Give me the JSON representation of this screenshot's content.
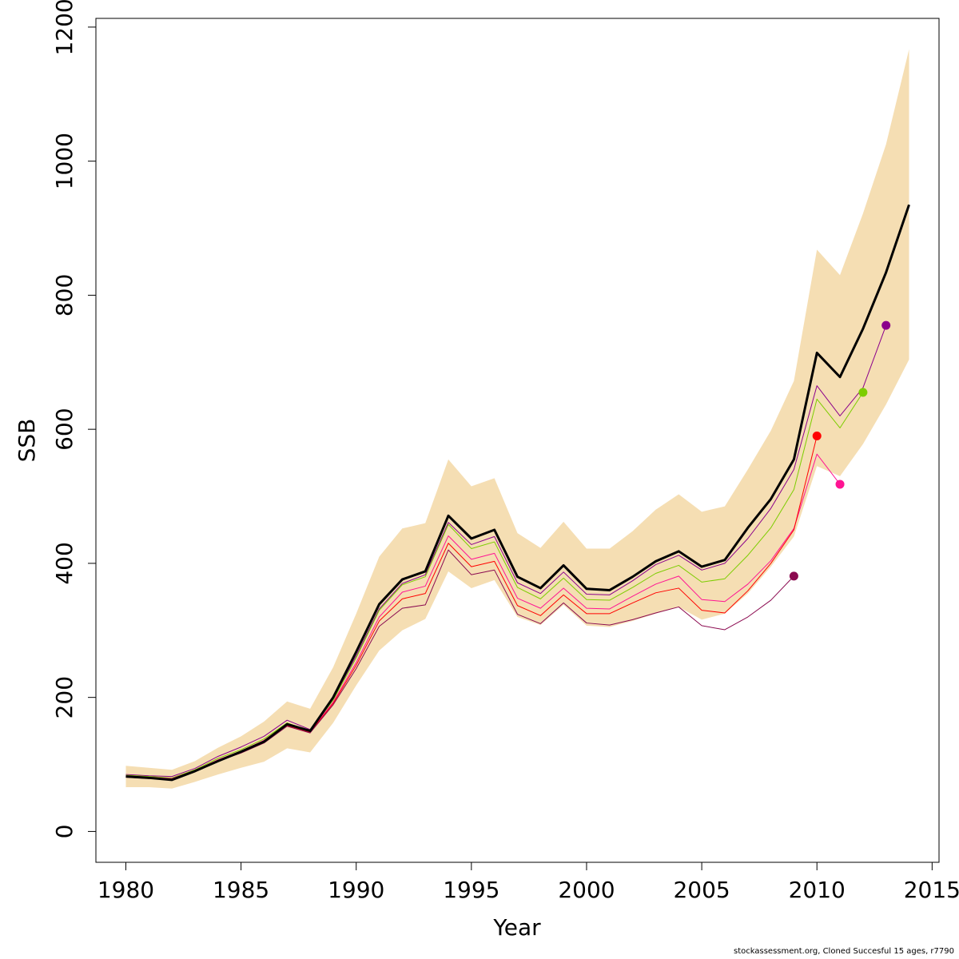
{
  "chart_data": {
    "type": "line",
    "xlabel": "Year",
    "ylabel": "SSB",
    "xlim": [
      1978.7,
      2015.3
    ],
    "ylim": [
      -46,
      1213
    ],
    "x_ticks": [
      1980,
      1985,
      1990,
      1995,
      2000,
      2005,
      2010,
      2015
    ],
    "y_ticks": [
      0,
      200,
      400,
      600,
      800,
      1000,
      1200
    ],
    "grid": false,
    "legend": "none",
    "band": {
      "color": "#F5DEB3",
      "x": [
        1980,
        1981,
        1982,
        1983,
        1984,
        1985,
        1986,
        1987,
        1988,
        1989,
        1990,
        1991,
        1992,
        1993,
        1994,
        1995,
        1996,
        1997,
        1998,
        1999,
        2000,
        2001,
        2002,
        2003,
        2004,
        2005,
        2006,
        2007,
        2008,
        2009,
        2010,
        2011,
        2012,
        2013,
        2014
      ],
      "upper": [
        98,
        95,
        92,
        105,
        125,
        142,
        164,
        194,
        183,
        245,
        325,
        410,
        452,
        460,
        555,
        515,
        527,
        445,
        423,
        462,
        422,
        422,
        448,
        480,
        503,
        477,
        485,
        540,
        598,
        672,
        868,
        830,
        922,
        1025,
        1167
      ],
      "lower": [
        66,
        66,
        64,
        74,
        85,
        95,
        104,
        124,
        118,
        162,
        218,
        270,
        300,
        317,
        388,
        363,
        375,
        320,
        308,
        338,
        307,
        305,
        314,
        325,
        335,
        316,
        325,
        355,
        395,
        440,
        545,
        530,
        578,
        637,
        704
      ]
    },
    "series": [
      {
        "color": "#000000",
        "x": [
          1980,
          1981,
          1982,
          1983,
          1984,
          1985,
          1986,
          1987,
          1988,
          1989,
          1990,
          1991,
          1992,
          1993,
          1994,
          1995,
          1996,
          1997,
          1998,
          1999,
          2000,
          2001,
          2002,
          2003,
          2004,
          2005,
          2006,
          2007,
          2008,
          2009,
          2010,
          2011,
          2012,
          2013,
          2014
        ],
        "values": [
          82,
          80,
          77,
          90,
          105,
          119,
          134,
          160,
          150,
          200,
          268,
          339,
          376,
          388,
          471,
          437,
          450,
          380,
          363,
          397,
          362,
          360,
          380,
          403,
          418,
          395,
          405,
          453,
          496,
          555,
          714,
          678,
          750,
          834,
          935
        ]
      },
      {
        "color": "#8B008B",
        "x": [
          1980,
          1981,
          1982,
          1983,
          1984,
          1985,
          1986,
          1987,
          1988,
          1989,
          1990,
          1991,
          1992,
          1993,
          1994,
          1995,
          1996,
          1997,
          1998,
          1999,
          2000,
          2001,
          2002,
          2003,
          2004,
          2005,
          2006,
          2007,
          2008,
          2009,
          2010,
          2011,
          2012,
          2013
        ],
        "values": [
          85,
          83,
          82,
          94,
          112,
          126,
          142,
          166,
          152,
          198,
          262,
          332,
          370,
          383,
          461,
          428,
          440,
          371,
          355,
          387,
          354,
          353,
          374,
          398,
          412,
          390,
          400,
          437,
          482,
          540,
          665,
          620,
          662,
          755
        ]
      },
      {
        "color": "#7CCD00",
        "x": [
          1980,
          1981,
          1982,
          1983,
          1984,
          1985,
          1986,
          1987,
          1988,
          1989,
          1990,
          1991,
          1992,
          1993,
          1994,
          1995,
          1996,
          1997,
          1998,
          1999,
          2000,
          2001,
          2002,
          2003,
          2004,
          2005,
          2006,
          2007,
          2008,
          2009,
          2010,
          2011,
          2012
        ],
        "values": [
          84,
          82,
          80,
          92,
          109,
          122,
          138,
          162,
          150,
          196,
          259,
          330,
          368,
          380,
          458,
          422,
          432,
          364,
          347,
          378,
          346,
          345,
          364,
          385,
          397,
          372,
          377,
          412,
          453,
          510,
          645,
          602,
          655
        ]
      },
      {
        "color": "#FF1493",
        "x": [
          1980,
          1981,
          1982,
          1983,
          1984,
          1985,
          1986,
          1987,
          1988,
          1989,
          1990,
          1991,
          1992,
          1993,
          1994,
          1995,
          1996,
          1997,
          1998,
          1999,
          2000,
          2001,
          2002,
          2003,
          2004,
          2005,
          2006,
          2007,
          2008,
          2009,
          2010,
          2011
        ],
        "values": [
          83,
          81,
          79,
          91,
          107,
          120,
          136,
          160,
          149,
          193,
          252,
          320,
          357,
          366,
          441,
          406,
          415,
          348,
          333,
          363,
          333,
          332,
          351,
          369,
          381,
          346,
          343,
          369,
          404,
          452,
          563,
          518
        ]
      },
      {
        "color": "#FF0000",
        "x": [
          1980,
          1981,
          1982,
          1983,
          1984,
          1985,
          1986,
          1987,
          1988,
          1989,
          1990,
          1991,
          1992,
          1993,
          1994,
          1995,
          1996,
          1997,
          1998,
          1999,
          2000,
          2001,
          2002,
          2003,
          2004,
          2005,
          2006,
          2007,
          2008,
          2009,
          2010
        ],
        "values": [
          82,
          80,
          78,
          90,
          106,
          118,
          134,
          158,
          148,
          191,
          248,
          314,
          347,
          355,
          430,
          395,
          403,
          337,
          322,
          353,
          325,
          325,
          341,
          356,
          363,
          330,
          326,
          359,
          400,
          450,
          590
        ]
      },
      {
        "color": "#8B0A50",
        "x": [
          1980,
          1981,
          1982,
          1983,
          1984,
          1985,
          1986,
          1987,
          1988,
          1989,
          1990,
          1991,
          1992,
          1993,
          1994,
          1995,
          1996,
          1997,
          1998,
          1999,
          2000,
          2001,
          2002,
          2003,
          2004,
          2005,
          2006,
          2007,
          2008,
          2009
        ],
        "values": [
          81,
          79,
          77,
          89,
          105,
          117,
          132,
          157,
          147,
          189,
          243,
          306,
          333,
          338,
          420,
          383,
          390,
          324,
          310,
          341,
          311,
          308,
          316,
          326,
          335,
          307,
          301,
          320,
          345,
          381
        ]
      },
      {
        "color": "#8B008B",
        "x": [
          2013
        ],
        "values": [
          755
        ],
        "endpoint_only": true
      },
      {
        "color": "#7CCD00",
        "x": [
          2012
        ],
        "values": [
          655
        ],
        "endpoint_only": true
      },
      {
        "color": "#FF1493",
        "x": [
          2011
        ],
        "values": [
          518
        ],
        "endpoint_only": true
      },
      {
        "color": "#FF0000",
        "x": [
          2010
        ],
        "values": [
          590
        ],
        "endpoint_only": true
      },
      {
        "color": "#8B0A50",
        "x": [
          2009
        ],
        "values": [
          381
        ],
        "endpoint_only": true
      }
    ],
    "credit": "stockassessment.org, Cloned  Succesful  15  ages, r7790"
  }
}
